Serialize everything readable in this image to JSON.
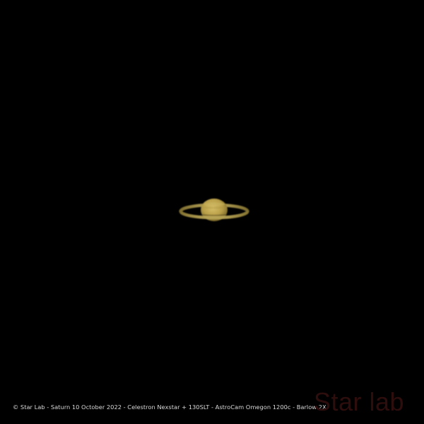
{
  "photo": {
    "subject": "saturn-icon",
    "caption": "© Star Lab - Saturn  10 October 2022 - Celestron Nexstar + 130SLT - AstroCam Omegon 1200c - Barlow 2X",
    "watermark": "Star lab",
    "colors": {
      "background": "#000000",
      "planet": "#c9b25a",
      "caption": "#d9d9d9",
      "watermark": "#2e0d0d"
    }
  }
}
